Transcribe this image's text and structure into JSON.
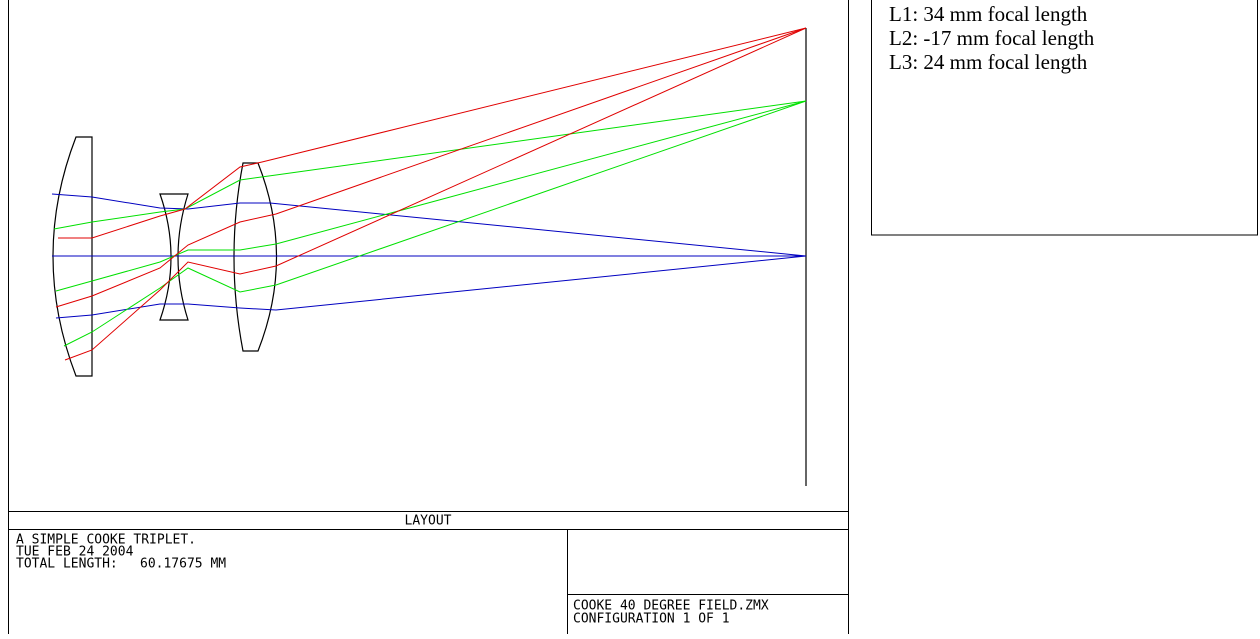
{
  "plot": {
    "title": "LAYOUT"
  },
  "info": {
    "lines": [
      "A SIMPLE COOKE TRIPLET.",
      "TUE FEB 24 2004"
    ],
    "length_label": "TOTAL LENGTH:",
    "length_value": "60.17675 MM",
    "file": "COOKE 40 DEGREE FIELD.ZMX",
    "config": "CONFIGURATION 1 OF 1"
  },
  "legend": {
    "items": [
      "L1:  34 mm focal length",
      "L2:  -17 mm focal length",
      "L3:  24 mm focal length"
    ]
  }
}
